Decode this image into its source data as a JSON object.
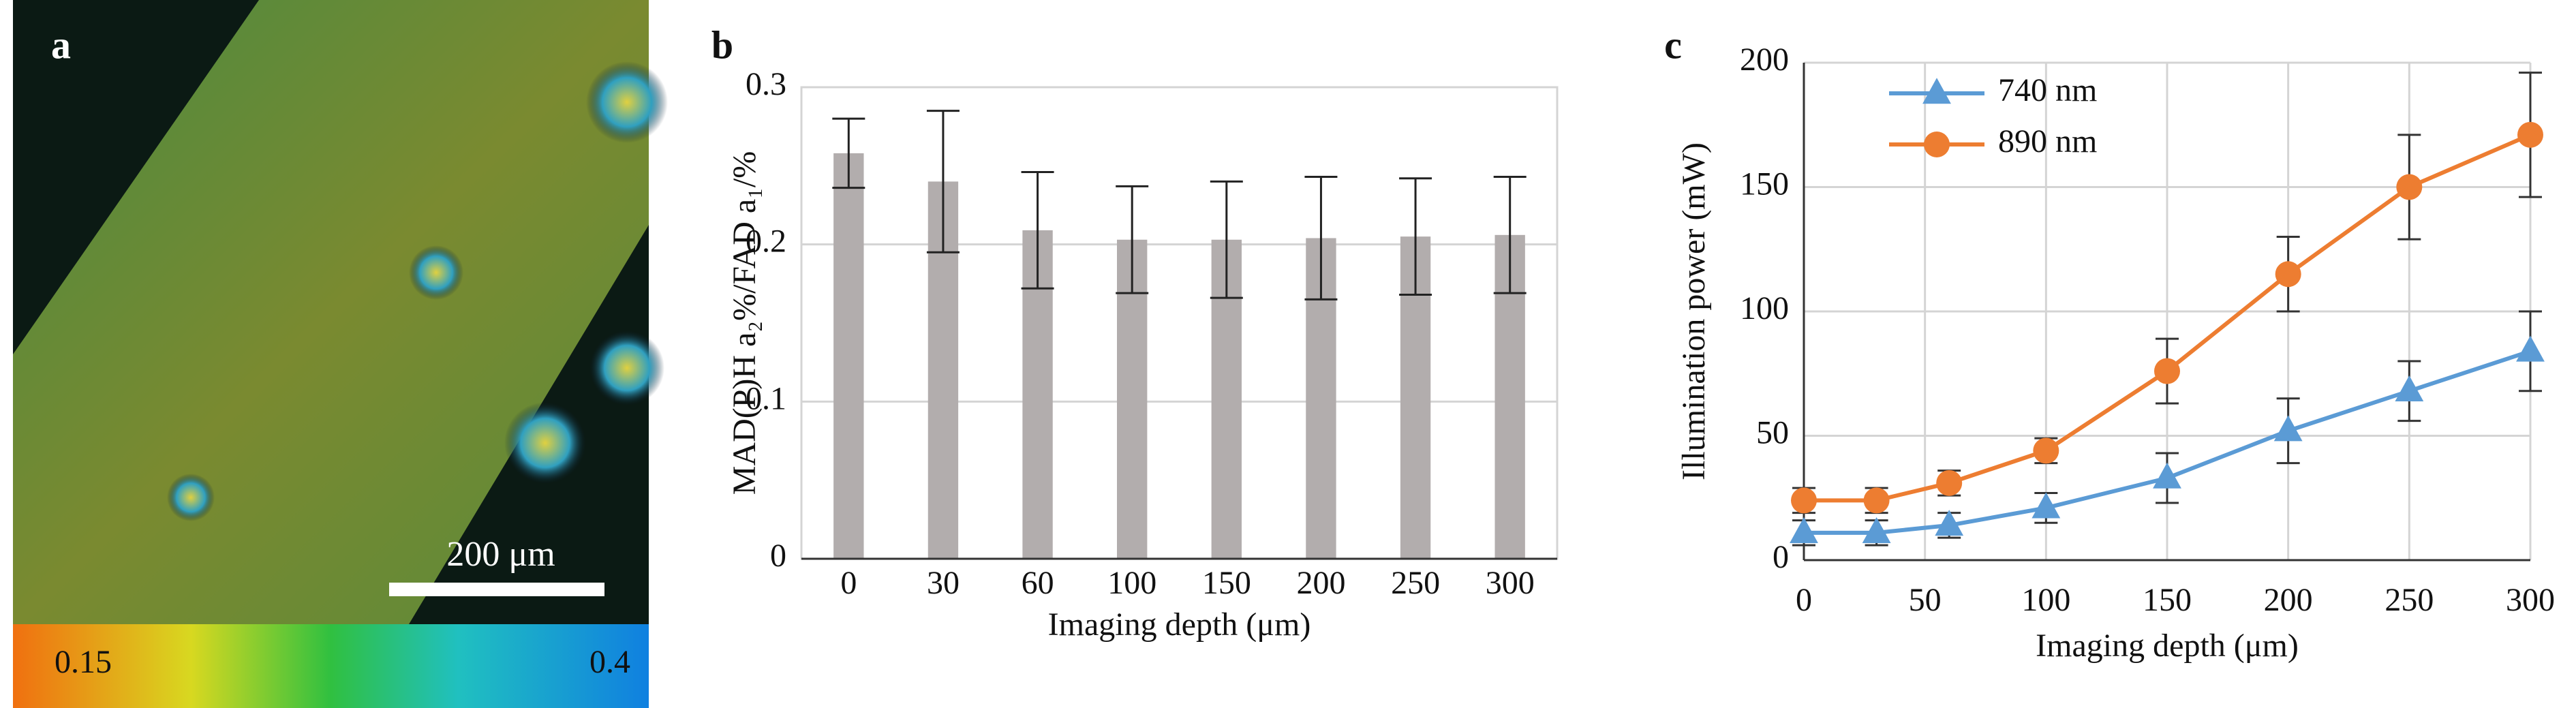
{
  "panel_a": {
    "label": "a",
    "scale_bar": "200 μm",
    "colorbar": [
      0.15,
      0.4
    ]
  },
  "chart_data": [
    {
      "type": "bar",
      "label": "b",
      "y_label": "MAD(P)H a₂%/FAD a₁/%",
      "x_label": "Imaging depth (μm)",
      "categories": [
        "0",
        "30",
        "60",
        "100",
        "150",
        "200",
        "250",
        "300"
      ],
      "values": [
        0.258,
        0.24,
        0.209,
        0.203,
        0.203,
        0.204,
        0.205,
        0.206
      ],
      "errors": [
        0.022,
        0.045,
        0.037,
        0.034,
        0.037,
        0.039,
        0.037,
        0.037
      ],
      "color": "#b2adad",
      "ylim": [
        0,
        0.3
      ],
      "yticks": [
        0,
        0.1,
        0.2,
        0.3
      ],
      "grid": true
    },
    {
      "type": "line",
      "label": "c",
      "y_label": "Illumination power (mW)",
      "x_label": "Imaging depth (μm)",
      "x": [
        0,
        30,
        60,
        100,
        150,
        200,
        250,
        300
      ],
      "series": [
        {
          "name": "740 nm",
          "color": "#5b9bd5",
          "marker": "triangle",
          "values": [
            11,
            11,
            14,
            21,
            33,
            52,
            68,
            84
          ],
          "errors": [
            5,
            5,
            5,
            6,
            10,
            13,
            12,
            16
          ]
        },
        {
          "name": "890 nm",
          "color": "#ed7d31",
          "marker": "circle",
          "values": [
            24,
            24,
            31,
            44,
            76,
            115,
            150,
            171
          ],
          "errors": [
            5,
            5,
            5,
            5,
            13,
            15,
            21,
            25
          ]
        }
      ],
      "xlim": [
        0,
        300
      ],
      "xticks": [
        0,
        50,
        100,
        150,
        200,
        250,
        300
      ],
      "ylim": [
        0,
        200
      ],
      "yticks": [
        0,
        50,
        100,
        150,
        200
      ],
      "grid": true,
      "legend": "top-left"
    }
  ]
}
